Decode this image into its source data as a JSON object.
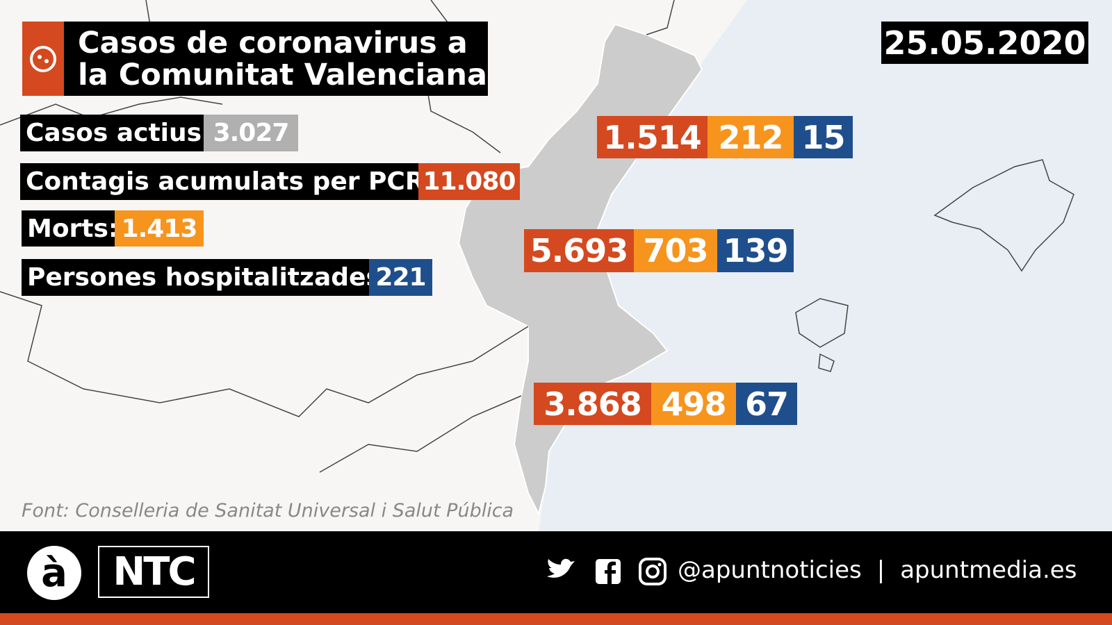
{
  "header": {
    "title_line1": "Casos de coronavirus a",
    "title_line2": "la Comunitat Valenciana",
    "date": "25.05.2020"
  },
  "stats": [
    {
      "label": "Casos actius:",
      "value": "3.027"
    },
    {
      "label": "Contagis acumulats per PCR:",
      "value": "11.080"
    },
    {
      "label": "Morts:",
      "value": "1.413"
    },
    {
      "label": "Persones hospitalitzades:",
      "value": "221"
    }
  ],
  "provinces": [
    {
      "cases": "1.514",
      "deaths": "212",
      "hospitalized": "15"
    },
    {
      "cases": "5.693",
      "deaths": "703",
      "hospitalized": "139"
    },
    {
      "cases": "3.868",
      "deaths": "498",
      "hospitalized": "67"
    }
  ],
  "source": "Font: Conselleria de Sanitat Universal i Salut Pública",
  "footer": {
    "logo": "à",
    "brand": "NTC",
    "handle": "@apuntnoticies",
    "separator": "|",
    "website": "apuntmedia.es"
  }
}
